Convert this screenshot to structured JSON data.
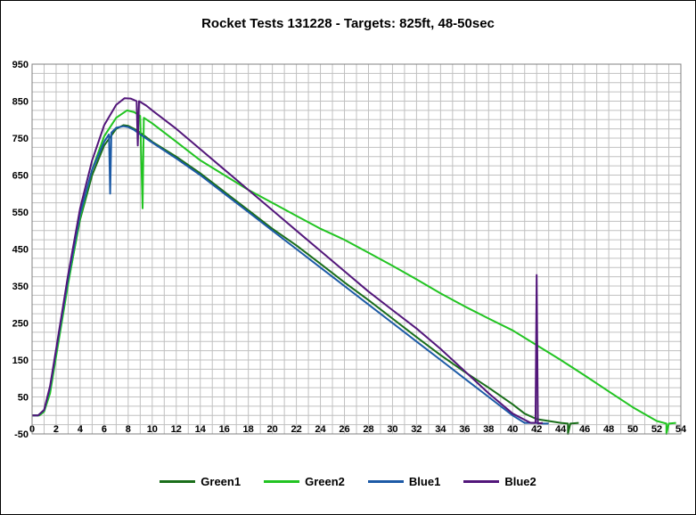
{
  "chart_data": {
    "type": "line",
    "title": "Rocket Tests 131228 - Targets: 825ft, 48-50sec",
    "xlabel": "",
    "ylabel": "",
    "xlim": [
      0,
      54
    ],
    "ylim": [
      -50,
      950
    ],
    "x_ticks": [
      0,
      2,
      4,
      6,
      8,
      10,
      12,
      14,
      16,
      18,
      20,
      22,
      24,
      26,
      28,
      30,
      32,
      34,
      36,
      38,
      40,
      42,
      44,
      46,
      48,
      50,
      52,
      54
    ],
    "y_ticks": [
      -50,
      50,
      150,
      250,
      350,
      450,
      550,
      650,
      750,
      850,
      950
    ],
    "grid": true,
    "legend_position": "bottom",
    "series": [
      {
        "name": "Green1",
        "color": "#1a6e1a",
        "points": [
          [
            0,
            0
          ],
          [
            0.5,
            0
          ],
          [
            1,
            12
          ],
          [
            1.5,
            70
          ],
          [
            2,
            170
          ],
          [
            3,
            360
          ],
          [
            4,
            530
          ],
          [
            5,
            650
          ],
          [
            6,
            730
          ],
          [
            7,
            775
          ],
          [
            7.6,
            785
          ],
          [
            8,
            783
          ],
          [
            8.5,
            775
          ],
          [
            9,
            765
          ],
          [
            10,
            740
          ],
          [
            12,
            700
          ],
          [
            14,
            655
          ],
          [
            16,
            605
          ],
          [
            18,
            555
          ],
          [
            20,
            505
          ],
          [
            22,
            460
          ],
          [
            24,
            410
          ],
          [
            26,
            360
          ],
          [
            28,
            312
          ],
          [
            30,
            262
          ],
          [
            32,
            212
          ],
          [
            34,
            163
          ],
          [
            36,
            118
          ],
          [
            38,
            75
          ],
          [
            40,
            30
          ],
          [
            41,
            5
          ],
          [
            42,
            -10
          ],
          [
            43,
            -15
          ],
          [
            44,
            -20
          ],
          [
            44.6,
            -22
          ],
          [
            44.6,
            -50
          ],
          [
            44.8,
            -22
          ],
          [
            45.5,
            -20
          ]
        ]
      },
      {
        "name": "Green2",
        "color": "#22c422",
        "points": [
          [
            0,
            0
          ],
          [
            0.6,
            0
          ],
          [
            1,
            10
          ],
          [
            1.5,
            60
          ],
          [
            2,
            160
          ],
          [
            3,
            355
          ],
          [
            4,
            535
          ],
          [
            5,
            665
          ],
          [
            6,
            755
          ],
          [
            7,
            805
          ],
          [
            7.9,
            825
          ],
          [
            8.5,
            820
          ],
          [
            9,
            810
          ],
          [
            9.2,
            560
          ],
          [
            9.3,
            805
          ],
          [
            10,
            790
          ],
          [
            12,
            740
          ],
          [
            14,
            690
          ],
          [
            16,
            650
          ],
          [
            18,
            610
          ],
          [
            20,
            575
          ],
          [
            22,
            540
          ],
          [
            24,
            505
          ],
          [
            26,
            475
          ],
          [
            28,
            440
          ],
          [
            30,
            405
          ],
          [
            32,
            368
          ],
          [
            34,
            330
          ],
          [
            36,
            295
          ],
          [
            38,
            262
          ],
          [
            40,
            230
          ],
          [
            42,
            190
          ],
          [
            44,
            150
          ],
          [
            46,
            108
          ],
          [
            48,
            65
          ],
          [
            50,
            22
          ],
          [
            52,
            -15
          ],
          [
            52.8,
            -22
          ],
          [
            52.8,
            -50
          ],
          [
            53,
            -22
          ],
          [
            53.6,
            -20
          ]
        ]
      },
      {
        "name": "Blue1",
        "color": "#1c5aa6",
        "points": [
          [
            0,
            0
          ],
          [
            0.5,
            0
          ],
          [
            1,
            14
          ],
          [
            1.5,
            75
          ],
          [
            2,
            175
          ],
          [
            3,
            370
          ],
          [
            4,
            545
          ],
          [
            5,
            665
          ],
          [
            6,
            740
          ],
          [
            6.4,
            760
          ],
          [
            6.5,
            600
          ],
          [
            6.6,
            765
          ],
          [
            7,
            778
          ],
          [
            7.6,
            782
          ],
          [
            8,
            780
          ],
          [
            8.5,
            772
          ],
          [
            9,
            760
          ],
          [
            10,
            738
          ],
          [
            12,
            695
          ],
          [
            14,
            650
          ],
          [
            16,
            600
          ],
          [
            18,
            550
          ],
          [
            20,
            500
          ],
          [
            22,
            450
          ],
          [
            24,
            400
          ],
          [
            26,
            350
          ],
          [
            28,
            300
          ],
          [
            30,
            250
          ],
          [
            32,
            200
          ],
          [
            34,
            150
          ],
          [
            36,
            100
          ],
          [
            38,
            50
          ],
          [
            40,
            0
          ],
          [
            41,
            -20
          ],
          [
            42,
            -20
          ],
          [
            42.5,
            -22
          ],
          [
            43,
            -22
          ]
        ]
      },
      {
        "name": "Blue2",
        "color": "#52167a",
        "points": [
          [
            0,
            0
          ],
          [
            0.5,
            0
          ],
          [
            1,
            15
          ],
          [
            1.5,
            80
          ],
          [
            2,
            180
          ],
          [
            3,
            380
          ],
          [
            4,
            560
          ],
          [
            5,
            690
          ],
          [
            6,
            785
          ],
          [
            7,
            840
          ],
          [
            7.7,
            858
          ],
          [
            8.2,
            857
          ],
          [
            8.7,
            850
          ],
          [
            8.8,
            730
          ],
          [
            8.9,
            850
          ],
          [
            9.5,
            838
          ],
          [
            10,
            825
          ],
          [
            12,
            775
          ],
          [
            14,
            720
          ],
          [
            16,
            665
          ],
          [
            18,
            610
          ],
          [
            20,
            555
          ],
          [
            22,
            500
          ],
          [
            24,
            445
          ],
          [
            26,
            390
          ],
          [
            28,
            335
          ],
          [
            30,
            285
          ],
          [
            32,
            235
          ],
          [
            34,
            180
          ],
          [
            36,
            120
          ],
          [
            38,
            60
          ],
          [
            40,
            5
          ],
          [
            41.5,
            -20
          ],
          [
            41.9,
            -20
          ],
          [
            42,
            380
          ],
          [
            42.1,
            -22
          ],
          [
            42.5,
            -20
          ]
        ]
      }
    ]
  }
}
